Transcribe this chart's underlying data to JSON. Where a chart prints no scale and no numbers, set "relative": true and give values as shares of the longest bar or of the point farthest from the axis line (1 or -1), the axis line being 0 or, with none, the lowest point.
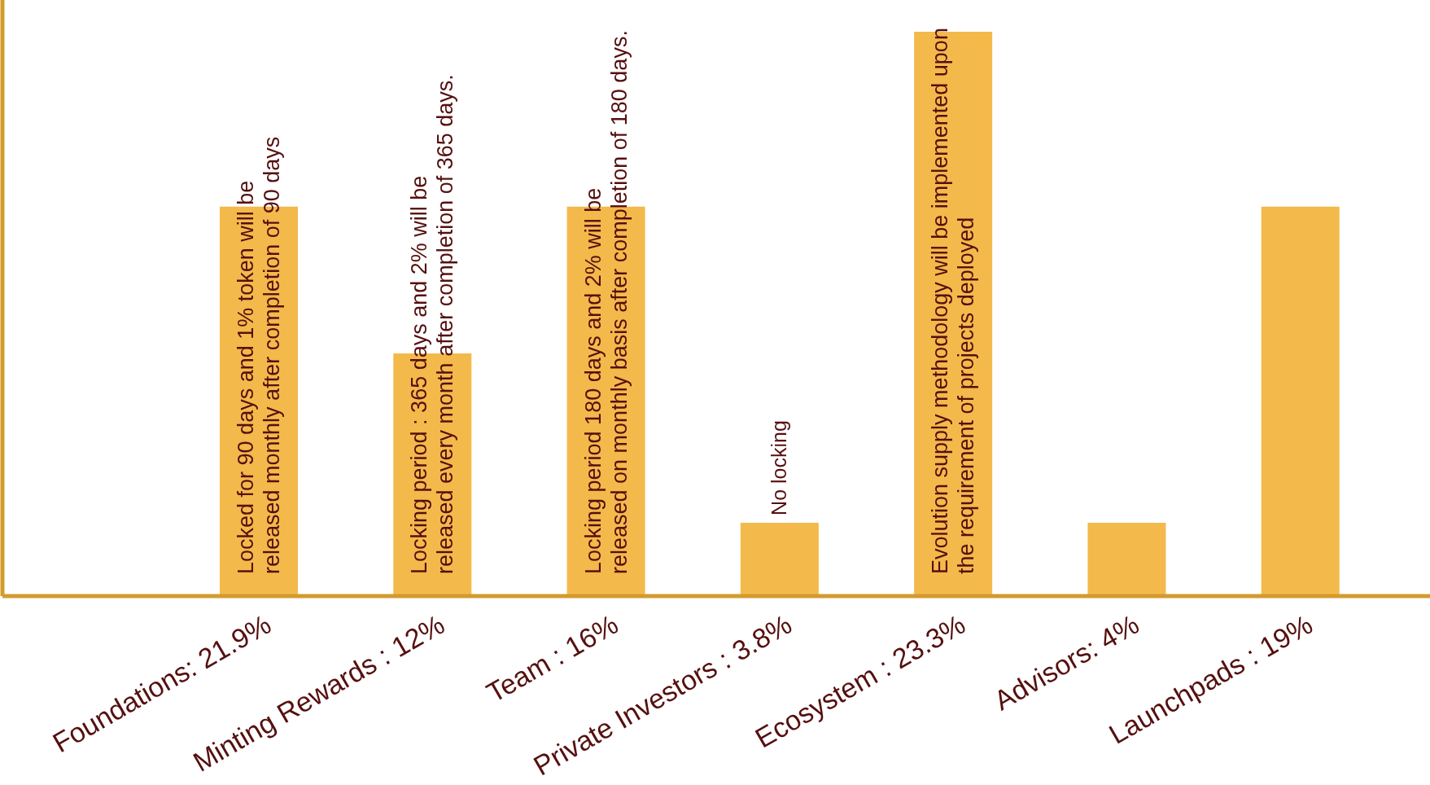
{
  "chart_data": {
    "type": "bar",
    "relative": true,
    "categories": [
      "Foundations: 21.9%",
      "Minting Rewards : 12%",
      "Team : 16%",
      "Private Investors : 3.8%",
      "Ecosystem : 23.3%",
      "Advisors: 4%",
      "Launchpads : 19%"
    ],
    "values": [
      0.69,
      0.43,
      0.69,
      0.13,
      1,
      0.13,
      0.69
    ],
    "color": "#f3b94b",
    "annotations": [
      {
        "text": "Locked for 90 days and 1% token will be\nreleased monthly after completion of 90 days",
        "x": "Foundations: 21.9%",
        "y": 0
      },
      {
        "text": "Locking period : 365 days and 2% will be\nreleased every month after completion of 365 days.",
        "x": "Minting Rewards : 12%",
        "y": 0
      },
      {
        "text": "Locking period 180 days and 2% will be\nreleased on monthly basis after completion of 180 days.",
        "x": "Team : 16%",
        "y": 0
      },
      {
        "text": "No locking",
        "x": "Private Investors : 3.8%",
        "y": 0.13
      },
      {
        "text": "Evolution supply methodology will be implemented upon\nthe requirement of projects deployed",
        "x": "Ecosystem : 23.3%",
        "y": 0
      }
    ]
  }
}
